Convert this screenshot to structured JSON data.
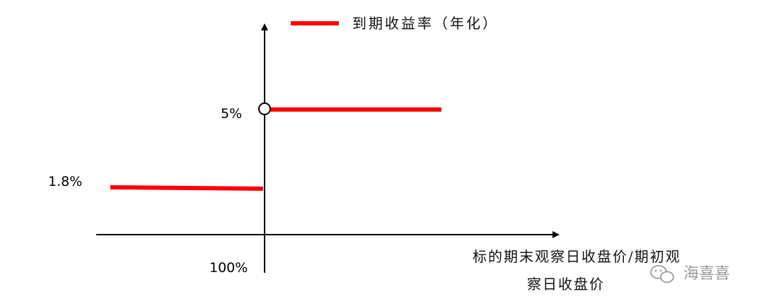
{
  "chart_data": {
    "type": "line",
    "legend": {
      "label": "到期收益率（年化）",
      "color": "#ff0000",
      "position": "top-center"
    },
    "x_axis": {
      "title_line1": "标的期末观察日收盘价/期初观",
      "title_line2": "察日收盘价",
      "threshold_label": "100%"
    },
    "y_axis": {
      "tick_labels": [
        "5%",
        "1.8%"
      ]
    },
    "series": [
      {
        "name": "到期收益率（年化）",
        "color": "#ff0000",
        "segments": [
          {
            "condition": "below 100%",
            "y": 1.8
          },
          {
            "condition": "at or above 100%",
            "y": 5.0
          }
        ]
      }
    ],
    "threshold": {
      "x": "100%",
      "open_circle_at_y": 5.0
    },
    "grid": false
  },
  "watermark": {
    "icon": "wechat-icon",
    "text": "海喜喜"
  }
}
